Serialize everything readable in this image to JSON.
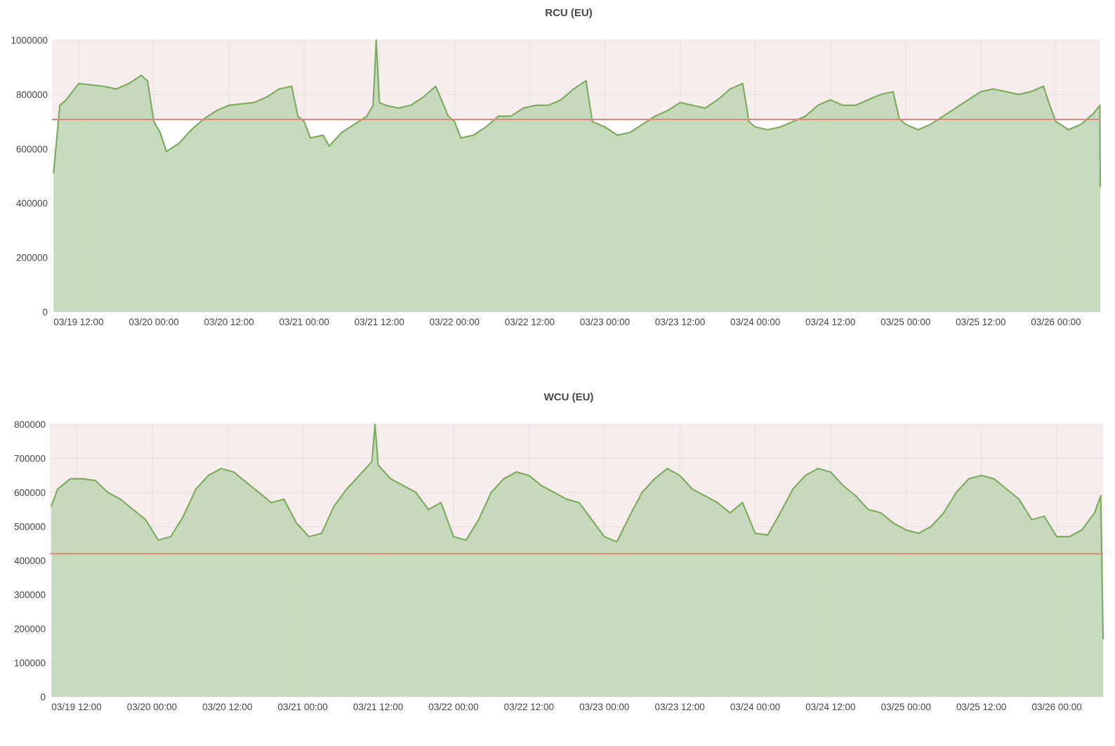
{
  "colors": {
    "area_fill": "#c3d8b9",
    "line": "#7fab63",
    "threshold_line": "#e3857a",
    "threshold_band": "#f8eded",
    "grid": "#e3e3e3"
  },
  "chart_data": [
    {
      "type": "area",
      "title": "RCU (EU)",
      "xlabel": "",
      "ylabel": "",
      "x_tick_labels": [
        "03/19 12:00",
        "03/20 00:00",
        "03/20 12:00",
        "03/21 00:00",
        "03/21 12:00",
        "03/22 00:00",
        "03/22 12:00",
        "03/23 00:00",
        "03/23 12:00",
        "03/24 00:00",
        "03/24 12:00",
        "03/25 00:00",
        "03/25 12:00",
        "03/26 00:00"
      ],
      "y_tick_labels": [
        "0",
        "200000",
        "400000",
        "600000",
        "800000",
        "1000000"
      ],
      "ylim": [
        0,
        1000000
      ],
      "grid": true,
      "legend": "none",
      "threshold": 708000,
      "series": [
        {
          "x": [
            "03/19 08:00",
            "03/19 09:00",
            "03/19 10:00",
            "03/19 12:00",
            "03/19 14:00",
            "03/19 16:00",
            "03/19 18:00",
            "03/19 20:00",
            "03/19 22:00",
            "03/19 23:00",
            "03/20 00:00",
            "03/20 01:00",
            "03/20 02:00",
            "03/20 04:00",
            "03/20 06:00",
            "03/20 08:00",
            "03/20 10:00",
            "03/20 12:00",
            "03/20 14:00",
            "03/20 16:00",
            "03/20 18:00",
            "03/20 20:00",
            "03/20 22:00",
            "03/20 23:00",
            "03/21 00:00",
            "03/21 01:00",
            "03/21 03:00",
            "03/21 04:00",
            "03/21 06:00",
            "03/21 08:00",
            "03/21 10:00",
            "03/21 11:00",
            "03/21 11:30",
            "03/21 12:00",
            "03/21 13:00",
            "03/21 15:00",
            "03/21 17:00",
            "03/21 19:00",
            "03/21 21:00",
            "03/21 23:00",
            "03/22 00:00",
            "03/22 01:00",
            "03/22 03:00",
            "03/22 05:00",
            "03/22 07:00",
            "03/22 09:00",
            "03/22 11:00",
            "03/22 13:00",
            "03/22 15:00",
            "03/22 17:00",
            "03/22 19:00",
            "03/22 21:00",
            "03/22 22:00",
            "03/23 00:00",
            "03/23 02:00",
            "03/23 04:00",
            "03/23 06:00",
            "03/23 08:00",
            "03/23 10:00",
            "03/23 12:00",
            "03/23 14:00",
            "03/23 16:00",
            "03/23 18:00",
            "03/23 20:00",
            "03/23 22:00",
            "03/23 23:00",
            "03/24 00:00",
            "03/24 02:00",
            "03/24 04:00",
            "03/24 06:00",
            "03/24 08:00",
            "03/24 10:00",
            "03/24 12:00",
            "03/24 14:00",
            "03/24 16:00",
            "03/24 18:00",
            "03/24 20:00",
            "03/24 22:00",
            "03/24 23:00",
            "03/25 00:00",
            "03/25 02:00",
            "03/25 04:00",
            "03/25 06:00",
            "03/25 08:00",
            "03/25 10:00",
            "03/25 12:00",
            "03/25 14:00",
            "03/25 16:00",
            "03/25 18:00",
            "03/25 20:00",
            "03/25 22:00",
            "03/25 23:00",
            "03/26 00:00",
            "03/26 02:00",
            "03/26 04:00",
            "03/26 06:00",
            "03/26 07:00",
            "03/26 07:30"
          ],
          "values": [
            510000,
            760000,
            780000,
            840000,
            835000,
            830000,
            820000,
            840000,
            870000,
            850000,
            700000,
            660000,
            590000,
            620000,
            670000,
            710000,
            740000,
            760000,
            765000,
            770000,
            790000,
            820000,
            830000,
            720000,
            700000,
            640000,
            650000,
            610000,
            660000,
            690000,
            720000,
            760000,
            1000000,
            770000,
            760000,
            750000,
            760000,
            790000,
            830000,
            720000,
            700000,
            640000,
            650000,
            680000,
            720000,
            720000,
            750000,
            760000,
            760000,
            780000,
            820000,
            850000,
            700000,
            680000,
            650000,
            660000,
            690000,
            720000,
            740000,
            770000,
            760000,
            750000,
            780000,
            820000,
            840000,
            700000,
            680000,
            670000,
            680000,
            700000,
            720000,
            760000,
            780000,
            760000,
            760000,
            780000,
            800000,
            810000,
            710000,
            690000,
            670000,
            690000,
            720000,
            750000,
            780000,
            810000,
            820000,
            810000,
            800000,
            810000,
            830000,
            760000,
            700000,
            670000,
            690000,
            730000,
            760000,
            460000
          ]
        }
      ]
    },
    {
      "type": "area",
      "title": "WCU (EU)",
      "xlabel": "",
      "ylabel": "",
      "x_tick_labels": [
        "03/19 12:00",
        "03/20 00:00",
        "03/20 12:00",
        "03/21 00:00",
        "03/21 12:00",
        "03/22 00:00",
        "03/22 12:00",
        "03/23 00:00",
        "03/23 12:00",
        "03/24 00:00",
        "03/24 12:00",
        "03/25 00:00",
        "03/25 12:00",
        "03/26 00:00"
      ],
      "y_tick_labels": [
        "0",
        "100000",
        "200000",
        "300000",
        "400000",
        "500000",
        "600000",
        "700000",
        "800000"
      ],
      "ylim": [
        0,
        800000
      ],
      "grid": true,
      "legend": "none",
      "threshold": 420000,
      "series": [
        {
          "x": [
            "03/19 08:00",
            "03/19 09:00",
            "03/19 11:00",
            "03/19 13:00",
            "03/19 15:00",
            "03/19 17:00",
            "03/19 19:00",
            "03/19 21:00",
            "03/19 23:00",
            "03/20 01:00",
            "03/20 03:00",
            "03/20 05:00",
            "03/20 07:00",
            "03/20 09:00",
            "03/20 11:00",
            "03/20 13:00",
            "03/20 15:00",
            "03/20 17:00",
            "03/20 19:00",
            "03/20 21:00",
            "03/20 23:00",
            "03/21 01:00",
            "03/21 03:00",
            "03/21 05:00",
            "03/21 07:00",
            "03/21 09:00",
            "03/21 11:00",
            "03/21 11:30",
            "03/21 12:00",
            "03/21 14:00",
            "03/21 16:00",
            "03/21 18:00",
            "03/21 20:00",
            "03/21 22:00",
            "03/22 00:00",
            "03/22 02:00",
            "03/22 04:00",
            "03/22 06:00",
            "03/22 08:00",
            "03/22 10:00",
            "03/22 12:00",
            "03/22 14:00",
            "03/22 16:00",
            "03/22 18:00",
            "03/22 20:00",
            "03/22 22:00",
            "03/23 00:00",
            "03/23 02:00",
            "03/23 04:00",
            "03/23 06:00",
            "03/23 08:00",
            "03/23 10:00",
            "03/23 12:00",
            "03/23 14:00",
            "03/23 16:00",
            "03/23 18:00",
            "03/23 20:00",
            "03/23 22:00",
            "03/24 00:00",
            "03/24 02:00",
            "03/24 04:00",
            "03/24 06:00",
            "03/24 08:00",
            "03/24 10:00",
            "03/24 12:00",
            "03/24 14:00",
            "03/24 16:00",
            "03/24 18:00",
            "03/24 20:00",
            "03/24 22:00",
            "03/25 00:00",
            "03/25 02:00",
            "03/25 04:00",
            "03/25 06:00",
            "03/25 08:00",
            "03/25 10:00",
            "03/25 12:00",
            "03/25 14:00",
            "03/25 16:00",
            "03/25 18:00",
            "03/25 20:00",
            "03/25 22:00",
            "03/26 00:00",
            "03/26 02:00",
            "03/26 04:00",
            "03/26 06:00",
            "03/26 07:00",
            "03/26 07:30"
          ],
          "values": [
            560000,
            610000,
            640000,
            640000,
            635000,
            600000,
            580000,
            550000,
            520000,
            460000,
            470000,
            530000,
            610000,
            650000,
            670000,
            660000,
            630000,
            600000,
            570000,
            580000,
            510000,
            470000,
            480000,
            560000,
            610000,
            650000,
            690000,
            800000,
            680000,
            640000,
            620000,
            600000,
            550000,
            570000,
            470000,
            460000,
            520000,
            600000,
            640000,
            660000,
            650000,
            620000,
            600000,
            580000,
            570000,
            520000,
            470000,
            455000,
            530000,
            600000,
            640000,
            670000,
            650000,
            610000,
            590000,
            570000,
            540000,
            570000,
            480000,
            475000,
            540000,
            610000,
            650000,
            670000,
            660000,
            620000,
            590000,
            550000,
            540000,
            510000,
            490000,
            480000,
            500000,
            540000,
            600000,
            640000,
            650000,
            640000,
            610000,
            580000,
            520000,
            530000,
            470000,
            470000,
            490000,
            540000,
            590000,
            170000
          ]
        }
      ]
    }
  ]
}
